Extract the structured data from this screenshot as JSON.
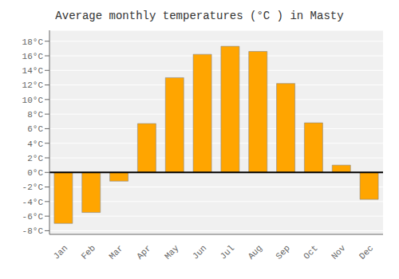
{
  "chart_data": {
    "type": "bar",
    "title": "Average monthly temperatures (°C ) in Masty",
    "categories": [
      "Jan",
      "Feb",
      "Mar",
      "Apr",
      "May",
      "Jun",
      "Jul",
      "Aug",
      "Sep",
      "Oct",
      "Nov",
      "Dec"
    ],
    "values": [
      -7.0,
      -5.5,
      -1.2,
      6.7,
      13.0,
      16.2,
      17.3,
      16.6,
      12.2,
      6.8,
      1.0,
      -3.7
    ],
    "color": "#FFA500",
    "ylim": [
      -8.5,
      19.5
    ],
    "yticks": [
      {
        "value": -8,
        "label": "-8°C"
      },
      {
        "value": -6,
        "label": "-6°C"
      },
      {
        "value": -4,
        "label": "-4°C"
      },
      {
        "value": -2,
        "label": "-2°C"
      },
      {
        "value": 0,
        "label": "0°C"
      },
      {
        "value": 2,
        "label": "2°C"
      },
      {
        "value": 4,
        "label": "4°C"
      },
      {
        "value": 6,
        "label": "6°C"
      },
      {
        "value": 8,
        "label": "8°C"
      },
      {
        "value": 10,
        "label": "10°C"
      },
      {
        "value": 12,
        "label": "12°C"
      },
      {
        "value": 14,
        "label": "14°C"
      },
      {
        "value": 16,
        "label": "16°C"
      },
      {
        "value": 18,
        "label": "18°C"
      }
    ],
    "grid": true
  }
}
